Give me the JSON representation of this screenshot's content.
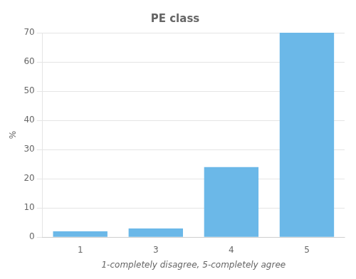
{
  "chart_data": {
    "type": "bar",
    "title": "PE class",
    "categories": [
      "1",
      "3",
      "4",
      "5"
    ],
    "values": [
      2,
      3,
      24,
      70
    ],
    "color": "#6BB8E8",
    "xlabel": "1-completely disagree, 5-completely agree",
    "ylabel": "%",
    "ylim": [
      0,
      70
    ],
    "yticks": [
      0,
      10,
      20,
      30,
      40,
      50,
      60,
      70
    ],
    "grid": true
  }
}
